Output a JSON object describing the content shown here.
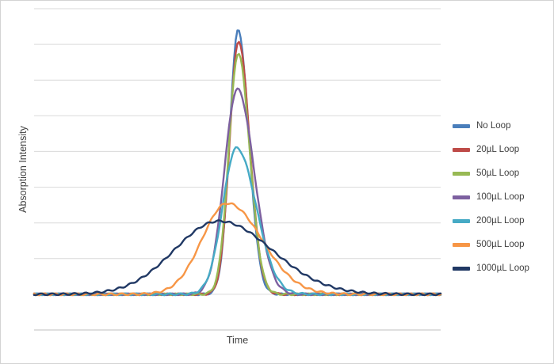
{
  "chart_data": {
    "type": "line",
    "title": "",
    "xlabel": "Time",
    "ylabel": "Absorption Intensity",
    "x_range": [
      0,
      100
    ],
    "ylim": [
      -0.02,
      0.16
    ],
    "gridline_step": 0.02,
    "grid": "horizontal-only",
    "grid_color": "#d9d9d9",
    "axis_line_color": "#bfbfbf",
    "legend_position": "right",
    "baseline_noise": 0.0005,
    "note": "Axes have no numeric tick labels; curves are peak-shaped (asymmetric Gaussian) traces reconstructed from pixel positions. Units: x 0-100 across plot, y in gridline units of 0.02.",
    "series": [
      {
        "name": "No Loop",
        "color": "#4A7EBB",
        "peak": 0.148,
        "center": 50.2,
        "sigma_left": 2.1,
        "sigma_right": 2.6
      },
      {
        "name": "20µL Loop",
        "color": "#BE4B48",
        "peak": 0.142,
        "center": 50.3,
        "sigma_left": 2.2,
        "sigma_right": 2.7
      },
      {
        "name": "50µL Loop",
        "color": "#98B954",
        "peak": 0.135,
        "center": 50.2,
        "sigma_left": 2.3,
        "sigma_right": 2.8
      },
      {
        "name": "100µL Loop",
        "color": "#7D60A0",
        "peak": 0.115,
        "center": 50.0,
        "sigma_left": 3.2,
        "sigma_right": 4.1
      },
      {
        "name": "200µL Loop",
        "color": "#46AAC5",
        "peak": 0.082,
        "center": 49.8,
        "sigma_left": 3.4,
        "sigma_right": 4.8
      },
      {
        "name": "500µL Loop",
        "color": "#F79646",
        "peak": 0.051,
        "center": 47.5,
        "sigma_left": 6.2,
        "sigma_right": 8.5
      },
      {
        "name": "1000µL Loop",
        "color": "#203864",
        "peak": 0.041,
        "center": 45.5,
        "sigma_left": 11.0,
        "sigma_right": 13.0
      }
    ]
  }
}
